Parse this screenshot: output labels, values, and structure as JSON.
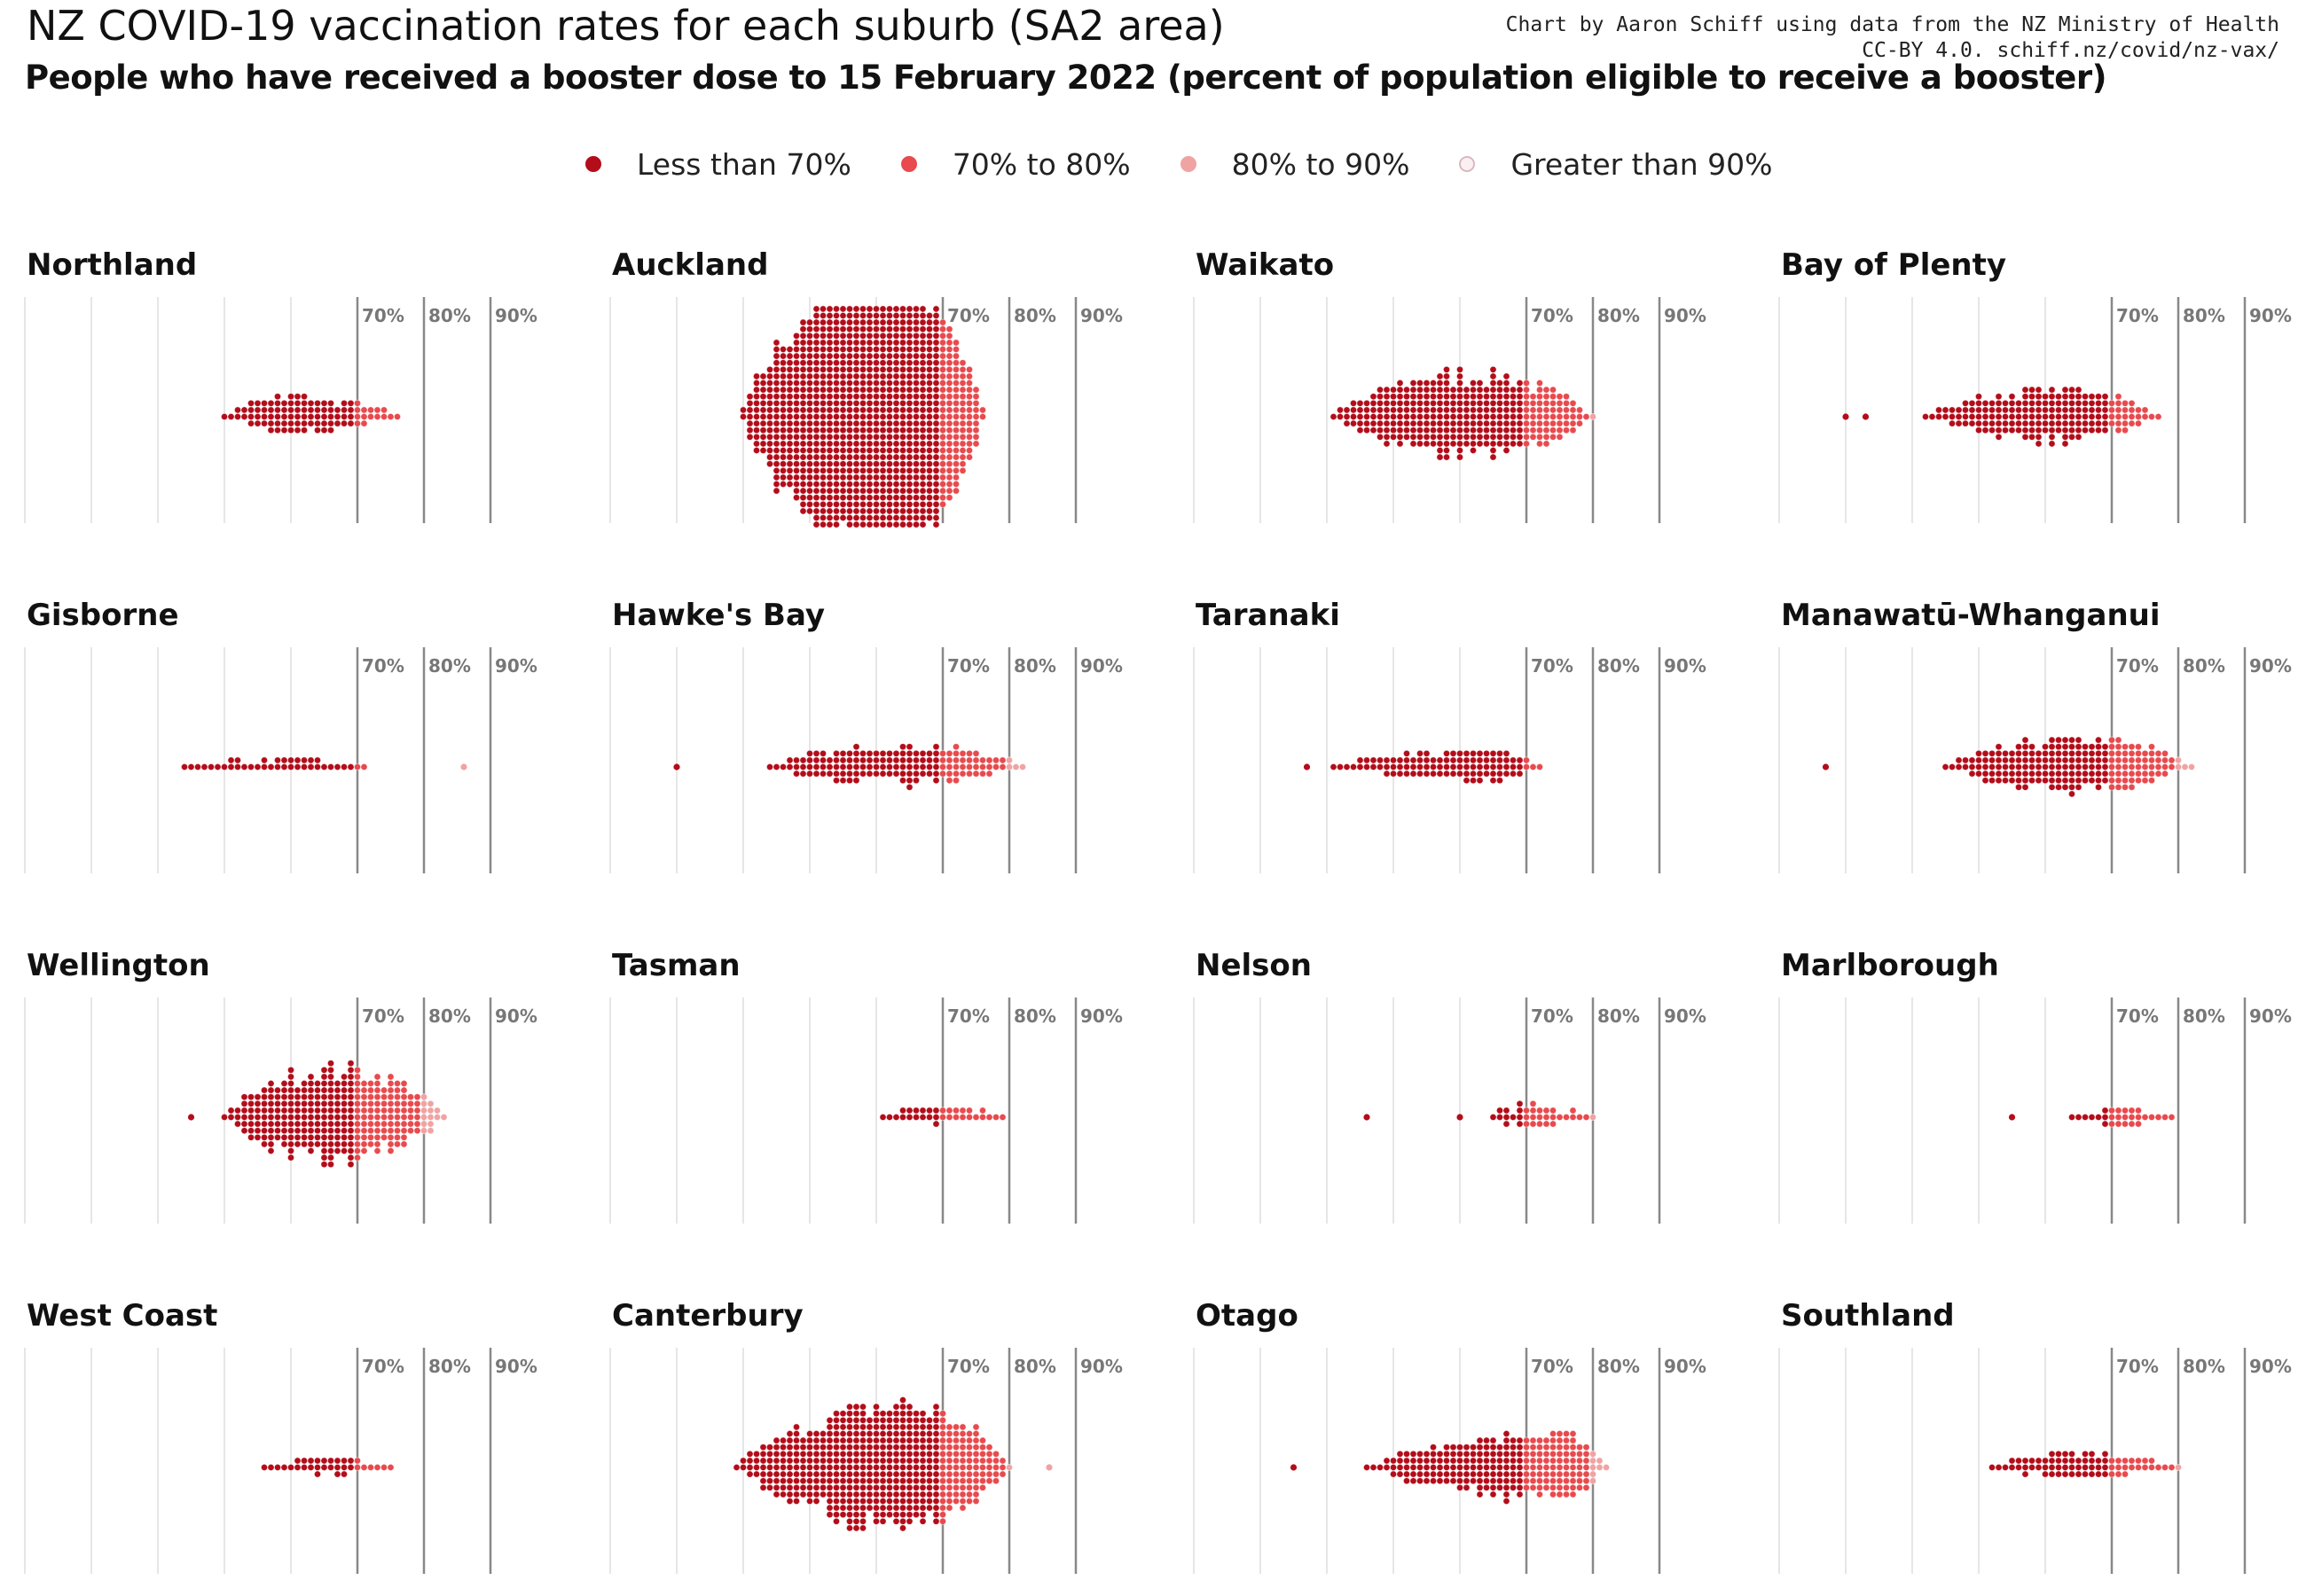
{
  "title": "NZ COVID-19 vaccination rates for each suburb (SA2 area)",
  "subtitle": "People who have received a booster dose to 15 February 2022 (percent of population eligible to receive a booster)",
  "credit": {
    "line1": "Chart by Aaron Schiff using data from the NZ Ministry of Health",
    "line2": "CC-BY 4.0. schiff.nz/covid/nz-vax/"
  },
  "legend": [
    {
      "label": "Less than 70%",
      "color": "#b30d1a",
      "border": "#b30d1a"
    },
    {
      "label": "70% to 80%",
      "color": "#e84a4e",
      "border": "#e84a4e"
    },
    {
      "label": "80% to 90%",
      "color": "#f0a3a3",
      "border": "#f0a3a3"
    },
    {
      "label": "Greater than 90%",
      "color": "#fbeff1",
      "border": "#d9b8bf"
    }
  ],
  "chart_data": {
    "type": "scatter",
    "description_type": "beeswarm small multiples",
    "x_unit": "% of eligible population boosted",
    "xlim": [
      20,
      100
    ],
    "reference_lines": [
      {
        "value": 70,
        "label": "70%"
      },
      {
        "value": 80,
        "label": "80%"
      },
      {
        "value": 90,
        "label": "90%"
      }
    ],
    "bins": {
      "less_70": "#b30d1a",
      "70_80": "#e84a4e",
      "80_90": "#f0a3a3",
      "over_90": "#fbeff1"
    },
    "panels": [
      {
        "name": "Northland",
        "min": 50,
        "max": 76,
        "peak": 60,
        "height": 4,
        "count": 95,
        "outliers": []
      },
      {
        "name": "Auckland",
        "min": 40,
        "max": 76,
        "peak": 62,
        "height": 16,
        "count": 1100,
        "outliers": []
      },
      {
        "name": "Waikato",
        "min": 41,
        "max": 80,
        "peak": 62,
        "height": 8,
        "count": 320,
        "outliers": []
      },
      {
        "name": "Bay of Plenty",
        "min": 42,
        "max": 77,
        "peak": 63,
        "height": 6,
        "count": 180,
        "outliers": [
          30,
          33
        ]
      },
      {
        "name": "Gisborne",
        "min": 44,
        "max": 71,
        "peak": 60,
        "height": 2,
        "count": 36,
        "outliers": [
          86
        ]
      },
      {
        "name": "Hawke's Bay",
        "min": 44,
        "max": 82,
        "peak": 64,
        "height": 4,
        "count": 140,
        "outliers": [
          30
        ]
      },
      {
        "name": "Taranaki",
        "min": 41,
        "max": 72,
        "peak": 62,
        "height": 3,
        "count": 95,
        "outliers": [
          37
        ]
      },
      {
        "name": "Manawatū-Whanganui",
        "min": 45,
        "max": 82,
        "peak": 66,
        "height": 8,
        "count": 200,
        "outliers": [
          27
        ]
      },
      {
        "name": "Wellington",
        "min": 50,
        "max": 83,
        "peak": 67,
        "height": 8,
        "count": 300,
        "outliers": [
          45
        ]
      },
      {
        "name": "Tasman",
        "min": 61,
        "max": 79,
        "peak": 69,
        "height": 3,
        "count": 30,
        "outliers": []
      },
      {
        "name": "Nelson",
        "min": 65,
        "max": 80,
        "peak": 69,
        "height": 2,
        "count": 36,
        "outliers": [
          46,
          60
        ]
      },
      {
        "name": "Marlborough",
        "min": 64,
        "max": 79,
        "peak": 71,
        "height": 2,
        "count": 30,
        "outliers": [
          55
        ]
      },
      {
        "name": "West Coast",
        "min": 56,
        "max": 75,
        "peak": 66,
        "height": 2,
        "count": 30,
        "outliers": []
      },
      {
        "name": "Canterbury",
        "min": 39,
        "max": 80,
        "peak": 64,
        "height": 10,
        "count": 500,
        "outliers": [
          86
        ]
      },
      {
        "name": "Otago",
        "min": 46,
        "max": 82,
        "peak": 74,
        "height": 5,
        "count": 230,
        "outliers": [
          35
        ]
      },
      {
        "name": "Southland",
        "min": 52,
        "max": 80,
        "peak": 64,
        "height": 3,
        "count": 70,
        "outliers": []
      }
    ]
  }
}
